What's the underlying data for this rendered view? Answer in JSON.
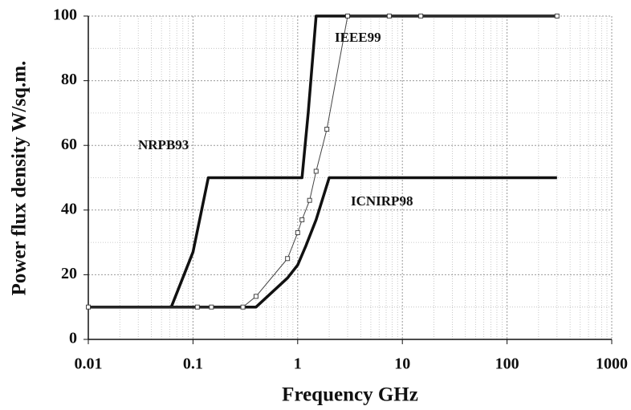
{
  "chart_data": {
    "type": "line",
    "x_label": "Frequency GHz",
    "y_label": "Power flux density W/sq.m.",
    "xscale": "log",
    "xlim": [
      0.01,
      1000
    ],
    "xticks": [
      0.01,
      0.1,
      1,
      10,
      100,
      1000
    ],
    "ylim": [
      0,
      100
    ],
    "yticks": [
      0,
      20,
      40,
      60,
      80,
      100
    ],
    "grid": true,
    "series": [
      {
        "name": "NRPB93",
        "color": "#111111",
        "width": 3.5,
        "markers": false,
        "x": [
          0.01,
          0.062,
          0.1,
          0.14,
          1.1,
          1.26,
          1.5,
          300
        ],
        "values": [
          10,
          10,
          27,
          50,
          50,
          70,
          100,
          100
        ]
      },
      {
        "name": "ICNIRP98",
        "color": "#111111",
        "width": 3.5,
        "markers": false,
        "x": [
          0.01,
          0.4,
          0.8,
          1,
          1.2,
          1.5,
          2,
          300
        ],
        "values": [
          10,
          10,
          19,
          23,
          29,
          37,
          50,
          50
        ]
      },
      {
        "name": "IEEE99",
        "color": "#444444",
        "width": 1,
        "markers": true,
        "x": [
          0.01,
          0.11,
          0.15,
          0.3,
          0.4,
          0.8,
          1,
          1.1,
          1.3,
          1.5,
          1.9,
          3,
          7.5,
          15,
          300
        ],
        "values": [
          10,
          10,
          10,
          10,
          13.3,
          25,
          33,
          37,
          43,
          52,
          65,
          100,
          100,
          100,
          100
        ]
      }
    ]
  }
}
